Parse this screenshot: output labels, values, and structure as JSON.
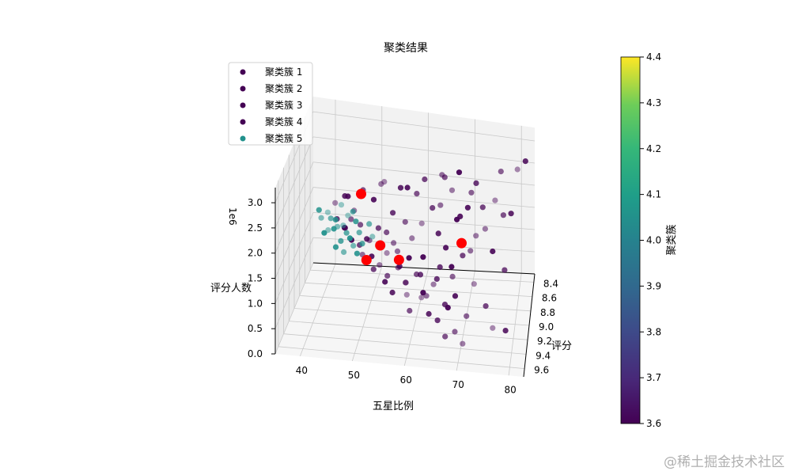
{
  "chart_data": {
    "type": "scatter",
    "projection": "3d",
    "title": "聚类结果",
    "xlabel": "评分",
    "ylabel": "五星比例",
    "zlabel": "评分人数",
    "z_offset_label": "1e6",
    "x_ticks": [
      "8.4",
      "8.6",
      "8.8",
      "9.0",
      "9.2",
      "9.4",
      "9.6"
    ],
    "y_ticks": [
      "40",
      "50",
      "60",
      "70",
      "80"
    ],
    "z_ticks": [
      "0.0",
      "0.5",
      "1.0",
      "1.5",
      "2.0",
      "2.5",
      "3.0"
    ],
    "xlim": [
      8.3,
      9.7
    ],
    "ylim": [
      35,
      88
    ],
    "zlim": [
      0,
      3.3
    ],
    "grid": true,
    "legend": {
      "placement": "top-left",
      "entries": [
        {
          "name": "聚类簇 1",
          "color": "#440154"
        },
        {
          "name": "聚类簇 2",
          "color": "#440154"
        },
        {
          "name": "聚类簇 3",
          "color": "#440154"
        },
        {
          "name": "聚类簇 4",
          "color": "#440154"
        },
        {
          "name": "聚类簇 5",
          "color": "#21918c"
        }
      ]
    },
    "colorbar": {
      "label": "聚类簇",
      "ticks": [
        "3.6",
        "3.7",
        "3.8",
        "3.9",
        "4.0",
        "4.1",
        "4.2",
        "4.3",
        "4.4"
      ],
      "range": [
        3.6,
        4.4
      ],
      "colormap": "viridis"
    },
    "cluster_colors": {
      "purple": "#440154",
      "teal": "#21918c",
      "centroid": "#ff0000"
    },
    "centroids": [
      {
        "x": 8.4,
        "y": 47.0,
        "z": 1.75
      },
      {
        "x": 8.45,
        "y": 71.0,
        "z": 0.9
      },
      {
        "x": 8.85,
        "y": 58.0,
        "z": 1.05
      },
      {
        "x": 9.15,
        "y": 52.0,
        "z": 1.45
      },
      {
        "x": 8.7,
        "y": 53.0,
        "z": 1.1
      }
    ],
    "series": [
      {
        "cluster": "purple",
        "points": [
          [
            8.3,
            52,
            1.92
          ],
          [
            8.32,
            56,
            1.85
          ],
          [
            8.35,
            60,
            1.8
          ],
          [
            8.38,
            47,
            1.7
          ],
          [
            8.4,
            50,
            1.65
          ],
          [
            8.42,
            64,
            1.62
          ],
          [
            8.45,
            66,
            1.75
          ],
          [
            8.48,
            70,
            1.5
          ],
          [
            8.5,
            55,
            1.55
          ],
          [
            8.52,
            58,
            1.4
          ],
          [
            8.55,
            62,
            1.45
          ],
          [
            8.58,
            66,
            1.3
          ],
          [
            8.6,
            54,
            1.25
          ],
          [
            8.62,
            60,
            1.2
          ],
          [
            8.65,
            68,
            1.1
          ],
          [
            8.68,
            72,
            1.0
          ],
          [
            8.7,
            57,
            1.0
          ],
          [
            8.72,
            63,
            0.95
          ],
          [
            8.75,
            67,
            0.8
          ],
          [
            8.78,
            70,
            0.65
          ],
          [
            8.8,
            75,
            0.55
          ],
          [
            8.82,
            58,
            0.85
          ],
          [
            8.85,
            62,
            0.75
          ],
          [
            8.88,
            66,
            0.6
          ],
          [
            8.9,
            71,
            0.4
          ],
          [
            8.92,
            78,
            0.25
          ],
          [
            8.95,
            60,
            0.7
          ],
          [
            8.98,
            64,
            0.55
          ],
          [
            9.0,
            69,
            0.35
          ],
          [
            9.05,
            74,
            0.2
          ],
          [
            9.1,
            80,
            0.05
          ],
          [
            9.15,
            83,
            0.1
          ],
          [
            9.0,
            56,
            0.9
          ],
          [
            8.95,
            54,
            1.05
          ],
          [
            8.9,
            52,
            1.15
          ],
          [
            8.85,
            49,
            1.3
          ],
          [
            8.8,
            51,
            1.35
          ],
          [
            8.75,
            45,
            1.5
          ],
          [
            8.7,
            43,
            1.6
          ],
          [
            8.65,
            46,
            1.55
          ],
          [
            8.6,
            42,
            1.8
          ],
          [
            8.55,
            44,
            1.9
          ],
          [
            8.5,
            48,
            2.0
          ],
          [
            8.45,
            52,
            2.1
          ],
          [
            8.4,
            58,
            2.0
          ],
          [
            8.38,
            62,
            2.2
          ],
          [
            8.35,
            66,
            2.3
          ],
          [
            8.32,
            70,
            2.35
          ],
          [
            8.3,
            74,
            2.1
          ],
          [
            8.33,
            80,
            2.5
          ],
          [
            8.36,
            84,
            2.65
          ],
          [
            8.4,
            86,
            2.95
          ],
          [
            8.5,
            81,
            1.75
          ],
          [
            8.6,
            77,
            1.55
          ],
          [
            8.7,
            79,
            1.2
          ],
          [
            8.8,
            82,
            0.95
          ],
          [
            9.05,
            65,
            0.6
          ],
          [
            9.1,
            70,
            0.45
          ],
          [
            9.2,
            68,
            0.3
          ],
          [
            9.25,
            72,
            0.15
          ],
          [
            9.15,
            61,
            0.75
          ],
          [
            9.2,
            58,
            0.85
          ],
          [
            9.25,
            62,
            0.55
          ],
          [
            8.65,
            75,
            1.45
          ],
          [
            8.55,
            71,
            1.7
          ],
          [
            8.45,
            76,
            1.8
          ],
          [
            8.75,
            74,
            1.25
          ],
          [
            8.85,
            70,
            1.0
          ],
          [
            8.95,
            67,
            0.85
          ],
          [
            8.9,
            58,
            0.95
          ],
          [
            8.8,
            55,
            1.1
          ],
          [
            8.72,
            50,
            1.25
          ],
          [
            8.62,
            48,
            1.4
          ],
          [
            8.52,
            46,
            1.55
          ],
          [
            8.42,
            44,
            1.7
          ],
          [
            8.58,
            52,
            1.3
          ],
          [
            8.68,
            56,
            1.15
          ],
          [
            8.78,
            60,
            1.0
          ],
          [
            8.88,
            63,
            0.8
          ],
          [
            8.98,
            60,
            0.75
          ],
          [
            9.08,
            64,
            0.6
          ],
          [
            9.18,
            66,
            0.4
          ],
          [
            9.3,
            70,
            0.1
          ],
          [
            9.35,
            74,
            0.05
          ],
          [
            9.12,
            56,
            0.95
          ],
          [
            9.02,
            53,
            1.05
          ],
          [
            8.92,
            50,
            1.2
          ],
          [
            8.82,
            47,
            1.35
          ],
          [
            8.72,
            45,
            1.45
          ],
          [
            8.35,
            73,
            1.95
          ],
          [
            8.48,
            79,
            2.05
          ],
          [
            8.58,
            83,
            1.95
          ],
          [
            8.44,
            67,
            2.4
          ],
          [
            8.52,
            69,
            2.25
          ],
          [
            8.62,
            73,
            2.05
          ]
        ]
      },
      {
        "cluster": "teal",
        "points": [
          [
            8.55,
            40,
            1.5
          ],
          [
            8.58,
            42,
            1.4
          ],
          [
            8.6,
            41,
            1.45
          ],
          [
            8.62,
            44,
            1.35
          ],
          [
            8.65,
            42,
            1.3
          ],
          [
            8.66,
            45,
            1.25
          ],
          [
            8.68,
            43,
            1.4
          ],
          [
            8.7,
            46,
            1.2
          ],
          [
            8.72,
            44,
            1.15
          ],
          [
            8.74,
            47,
            1.1
          ],
          [
            8.6,
            45,
            1.55
          ],
          [
            8.63,
            47,
            1.48
          ],
          [
            8.67,
            48,
            1.3
          ],
          [
            8.71,
            41,
            1.35
          ],
          [
            8.75,
            43,
            1.05
          ],
          [
            8.57,
            46,
            1.6
          ],
          [
            8.64,
            39,
            1.5
          ],
          [
            8.69,
            40,
            1.25
          ],
          [
            8.73,
            49,
            1.15
          ],
          [
            8.78,
            45,
            1.0
          ],
          [
            8.52,
            43,
            1.65
          ],
          [
            8.56,
            38,
            1.55
          ],
          [
            8.61,
            50,
            1.42
          ],
          [
            8.66,
            51,
            1.22
          ],
          [
            8.77,
            48,
            0.98
          ]
        ]
      }
    ]
  },
  "watermark": "@稀土掘金技术社区"
}
